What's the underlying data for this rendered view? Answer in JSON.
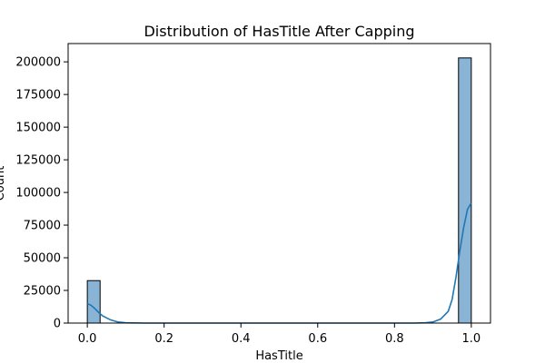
{
  "chart_data": {
    "type": "bar",
    "title": "Distribution of HasTitle After Capping",
    "xlabel": "HasTitle",
    "ylabel": "Count",
    "xlim": [
      -0.05,
      1.05
    ],
    "ylim": [
      0,
      214000
    ],
    "x_ticks": [
      0.0,
      0.2,
      0.4,
      0.6,
      0.8,
      1.0
    ],
    "x_tick_labels": [
      "0.0",
      "0.2",
      "0.4",
      "0.6",
      "0.8",
      "1.0"
    ],
    "y_ticks": [
      0,
      25000,
      50000,
      75000,
      100000,
      125000,
      150000,
      175000,
      200000
    ],
    "y_tick_labels": [
      "0",
      "25000",
      "50000",
      "75000",
      "100000",
      "125000",
      "150000",
      "175000",
      "200000"
    ],
    "bars": [
      {
        "x_start": 0.0,
        "x_end": 0.0333,
        "value": 32500
      },
      {
        "x_start": 0.9667,
        "x_end": 1.0,
        "value": 203000
      }
    ],
    "kde": {
      "x": [
        0.0,
        0.01,
        0.02,
        0.03,
        0.04,
        0.06,
        0.08,
        0.1,
        0.15,
        0.2,
        0.3,
        0.5,
        0.7,
        0.8,
        0.85,
        0.88,
        0.9,
        0.92,
        0.94,
        0.95,
        0.96,
        0.97,
        0.98,
        0.99,
        1.0
      ],
      "y": [
        15000,
        13500,
        11000,
        8000,
        5500,
        2500,
        800,
        250,
        0,
        0,
        0,
        0,
        0,
        0,
        0,
        200,
        800,
        3000,
        9000,
        18000,
        35000,
        55000,
        73000,
        87000,
        92000
      ]
    },
    "grid": false,
    "legend": "none",
    "colors": {
      "bar_fill": "#8ab4d6",
      "bar_edge": "#000000",
      "kde_line": "#1f77b4",
      "axis": "#000000"
    }
  }
}
